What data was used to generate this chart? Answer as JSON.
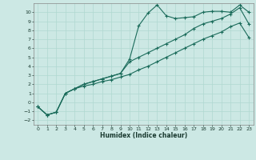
{
  "xlabel": "Humidex (Indice chaleur)",
  "xlim": [
    -0.5,
    23.5
  ],
  "ylim": [
    -2.5,
    11.0
  ],
  "xticks": [
    0,
    1,
    2,
    3,
    4,
    5,
    6,
    7,
    8,
    9,
    10,
    11,
    12,
    13,
    14,
    15,
    16,
    17,
    18,
    19,
    20,
    21,
    22,
    23
  ],
  "yticks": [
    -2,
    -1,
    0,
    1,
    2,
    3,
    4,
    5,
    6,
    7,
    8,
    9,
    10
  ],
  "bg_color": "#cce8e4",
  "line_color": "#1a6b5a",
  "grid_color": "#b0d8d0",
  "line1_x": [
    0,
    1,
    2,
    3,
    4,
    5,
    6,
    7,
    8,
    9,
    10,
    11,
    12,
    13,
    14,
    15,
    16,
    17,
    18,
    19,
    20,
    21,
    22,
    23
  ],
  "line1_y": [
    -0.5,
    -1.4,
    -1.1,
    1.0,
    1.5,
    2.0,
    2.3,
    2.6,
    2.9,
    3.2,
    4.8,
    8.5,
    9.9,
    10.8,
    9.6,
    9.3,
    9.4,
    9.5,
    10.0,
    10.1,
    10.1,
    10.0,
    10.8,
    10.0
  ],
  "line2_x": [
    0,
    1,
    2,
    3,
    4,
    5,
    6,
    7,
    8,
    9,
    10,
    11,
    12,
    13,
    14,
    15,
    16,
    17,
    18,
    19,
    20,
    21,
    22,
    23
  ],
  "line2_y": [
    -0.5,
    -1.4,
    -1.1,
    1.0,
    1.5,
    2.0,
    2.3,
    2.6,
    2.9,
    3.2,
    4.5,
    5.0,
    5.5,
    6.0,
    6.5,
    7.0,
    7.5,
    8.2,
    8.7,
    9.0,
    9.3,
    9.8,
    10.5,
    8.7
  ],
  "line3_x": [
    0,
    1,
    2,
    3,
    4,
    5,
    6,
    7,
    8,
    9,
    10,
    11,
    12,
    13,
    14,
    15,
    16,
    17,
    18,
    19,
    20,
    21,
    22,
    23
  ],
  "line3_y": [
    -0.5,
    -1.4,
    -1.1,
    1.0,
    1.5,
    1.8,
    2.0,
    2.3,
    2.5,
    2.8,
    3.1,
    3.6,
    4.0,
    4.5,
    5.0,
    5.5,
    6.0,
    6.5,
    7.0,
    7.4,
    7.8,
    8.4,
    8.8,
    7.2
  ]
}
